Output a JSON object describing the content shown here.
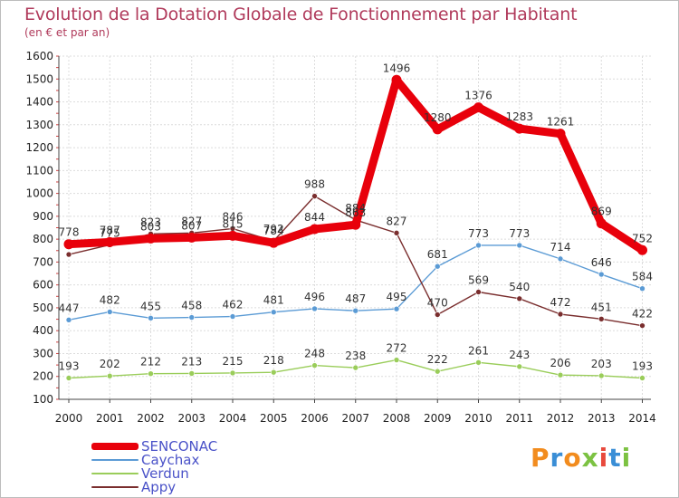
{
  "header": {
    "title": "Evolution de la Dotation Globale de Fonctionnement par Habitant",
    "subtitle": "(en € et par an)"
  },
  "logo": {
    "text": "Proxiti",
    "colors": [
      "#f28c1e",
      "#3a8ed6",
      "#f28c1e",
      "#7cc242",
      "#e8493c",
      "#3a8ed6",
      "#7cc242"
    ]
  },
  "chart_data": {
    "type": "line",
    "title": "Evolution de la Dotation Globale de Fonctionnement par Habitant",
    "subtitle": "(en € et par an)",
    "x": [
      "2000",
      "2001",
      "2002",
      "2003",
      "2004",
      "2005",
      "2006",
      "2007",
      "2008",
      "2009",
      "2010",
      "2011",
      "2012",
      "2013",
      "2014"
    ],
    "ylim": [
      100,
      1600
    ],
    "yticks": [
      "100",
      "200",
      "300",
      "400",
      "500",
      "600",
      "700",
      "800",
      "900",
      "1000",
      "1100",
      "1200",
      "1300",
      "1400",
      "1500",
      "1600"
    ],
    "grid": true,
    "legend_position": "bottom-left",
    "series": [
      {
        "name": "SENCONAC",
        "color": "#e8000b",
        "style": "thick",
        "values": [
          778,
          787,
          803,
          807,
          815,
          784,
          844,
          863,
          1496,
          1280,
          1376,
          1283,
          1261,
          869,
          752
        ],
        "labels": [
          "778",
          "787",
          "803",
          "807",
          "815",
          "784",
          "844",
          "863",
          "1496",
          "1280",
          "1376",
          "1283",
          "1261",
          "869",
          "752"
        ]
      },
      {
        "name": "Caychax",
        "color": "#5b9bd5",
        "style": "thin",
        "values": [
          447,
          482,
          455,
          458,
          462,
          481,
          496,
          487,
          495,
          681,
          773,
          773,
          714,
          646,
          584
        ],
        "labels": [
          "447",
          "482",
          "455",
          "458",
          "462",
          "481",
          "496",
          "487",
          "495",
          "681",
          "773",
          "773",
          "714",
          "646",
          "584"
        ]
      },
      {
        "name": "Verdun",
        "color": "#9acd5a",
        "style": "thin",
        "values": [
          193,
          202,
          212,
          213,
          215,
          218,
          248,
          238,
          272,
          222,
          261,
          243,
          206,
          203,
          193
        ],
        "labels": [
          "193",
          "202",
          "212",
          "213",
          "215",
          "218",
          "248",
          "238",
          "272",
          "222",
          "261",
          "243",
          "206",
          "203",
          "193"
        ]
      },
      {
        "name": "Appy",
        "color": "#7a2e2e",
        "style": "thin",
        "values": [
          733,
          775,
          823,
          827,
          846,
          792,
          988,
          884,
          827,
          470,
          569,
          540,
          472,
          451,
          422
        ],
        "labels": [
          "",
          "775",
          "823",
          "827",
          "846",
          "792",
          "988",
          "884",
          "827",
          "470",
          "569",
          "540",
          "472",
          "451",
          "422"
        ]
      }
    ]
  }
}
